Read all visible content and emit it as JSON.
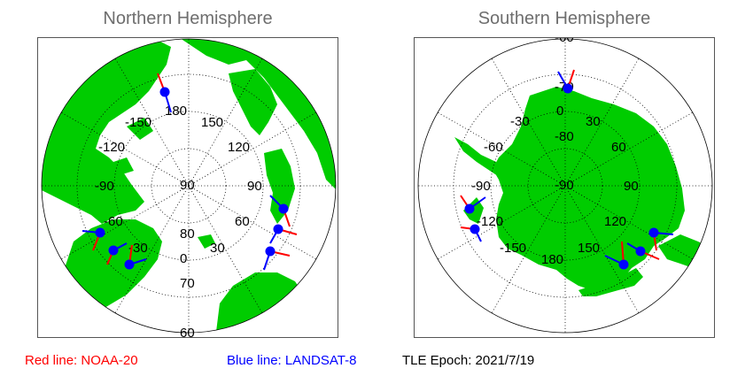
{
  "north": {
    "title": "Northern Hemisphere",
    "longitude_labels": [
      "-150",
      "180",
      "150",
      "-120",
      "120",
      "-90",
      "90",
      "-60",
      "60",
      "-30",
      "30",
      "0"
    ],
    "latitude_labels": [
      "80",
      "70",
      "60"
    ],
    "pole_label": "90"
  },
  "south": {
    "title": "Southern Hemisphere",
    "longitude_labels": [
      "-30",
      "0",
      "30",
      "-60",
      "60",
      "-90",
      "90",
      "-120",
      "120",
      "-150",
      "150",
      "180"
    ],
    "latitude_labels": [
      "-80",
      "-70",
      "-60"
    ],
    "pole_label": "-90"
  },
  "legend": {
    "red_label": "Red line: NOAA-20",
    "blue_label": "Blue line: LANDSAT-8",
    "epoch_label": "TLE Epoch: 2021/7/19"
  },
  "colors": {
    "land": "#00cc00",
    "ocean": "#ffffff",
    "noaa20": "#ff0000",
    "landsat8": "#0000ff",
    "satellite_dot": "#0000ff",
    "title": "#6e6e6e"
  }
}
